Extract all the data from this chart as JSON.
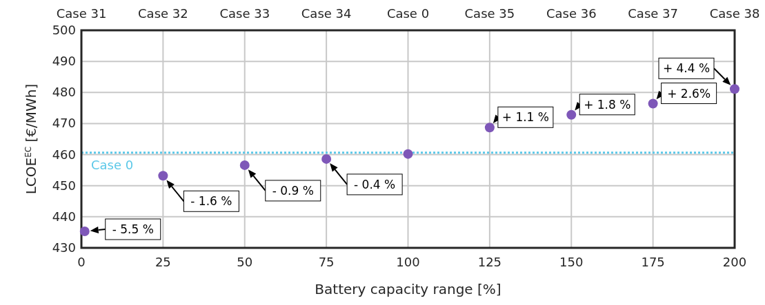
{
  "chart_data": {
    "type": "scatter",
    "xlabel": "Battery capacity range [%]",
    "ylabel": "LCOE$^{EC}$ [€/MWh]",
    "x": [
      1,
      25,
      50,
      75,
      100,
      125,
      150,
      175,
      200
    ],
    "series": [
      {
        "color": "#7e57b8",
        "values": [
          435.3,
          453.2,
          456.6,
          458.6,
          460.2,
          468.7,
          472.8,
          476.4,
          481.1
        ]
      }
    ],
    "xlim": [
      0,
      200
    ],
    "xticks": [
      0,
      25,
      50,
      75,
      100,
      125,
      150,
      175,
      200
    ],
    "ylim": [
      430,
      500
    ],
    "yticks": [
      430,
      440,
      450,
      460,
      470,
      480,
      490,
      500
    ],
    "ref_lines": [
      {
        "axis": "y",
        "value": 460.6,
        "label": "Case 0",
        "color": "#5bc8e8",
        "line_style": "dotted"
      }
    ],
    "annotations": [
      "Case 31",
      "Case 32",
      "Case 33",
      "Case 34",
      "Case 0",
      "Case 35",
      "Case 36",
      "Case 37",
      "Case 38",
      {
        "text": "- 5.5 %",
        "x": 1,
        "y": 435.3
      },
      {
        "text": "- 1.6 %",
        "x": 25,
        "y": 453.2
      },
      {
        "text": "- 0.9 %",
        "x": 50,
        "y": 456.6
      },
      {
        "text": "- 0.4 %",
        "x": 75,
        "y": 458.6
      },
      {
        "text": "+ 1.1 %",
        "x": 125,
        "y": 468.7
      },
      {
        "text": "+ 1.8 %",
        "x": 150,
        "y": 472.8
      },
      {
        "text": "+ 2.6%",
        "x": 175,
        "y": 476.4
      },
      {
        "text": "+ 4.4 %",
        "x": 200,
        "y": 481.1
      }
    ],
    "grid": true,
    "marker": "circle"
  }
}
